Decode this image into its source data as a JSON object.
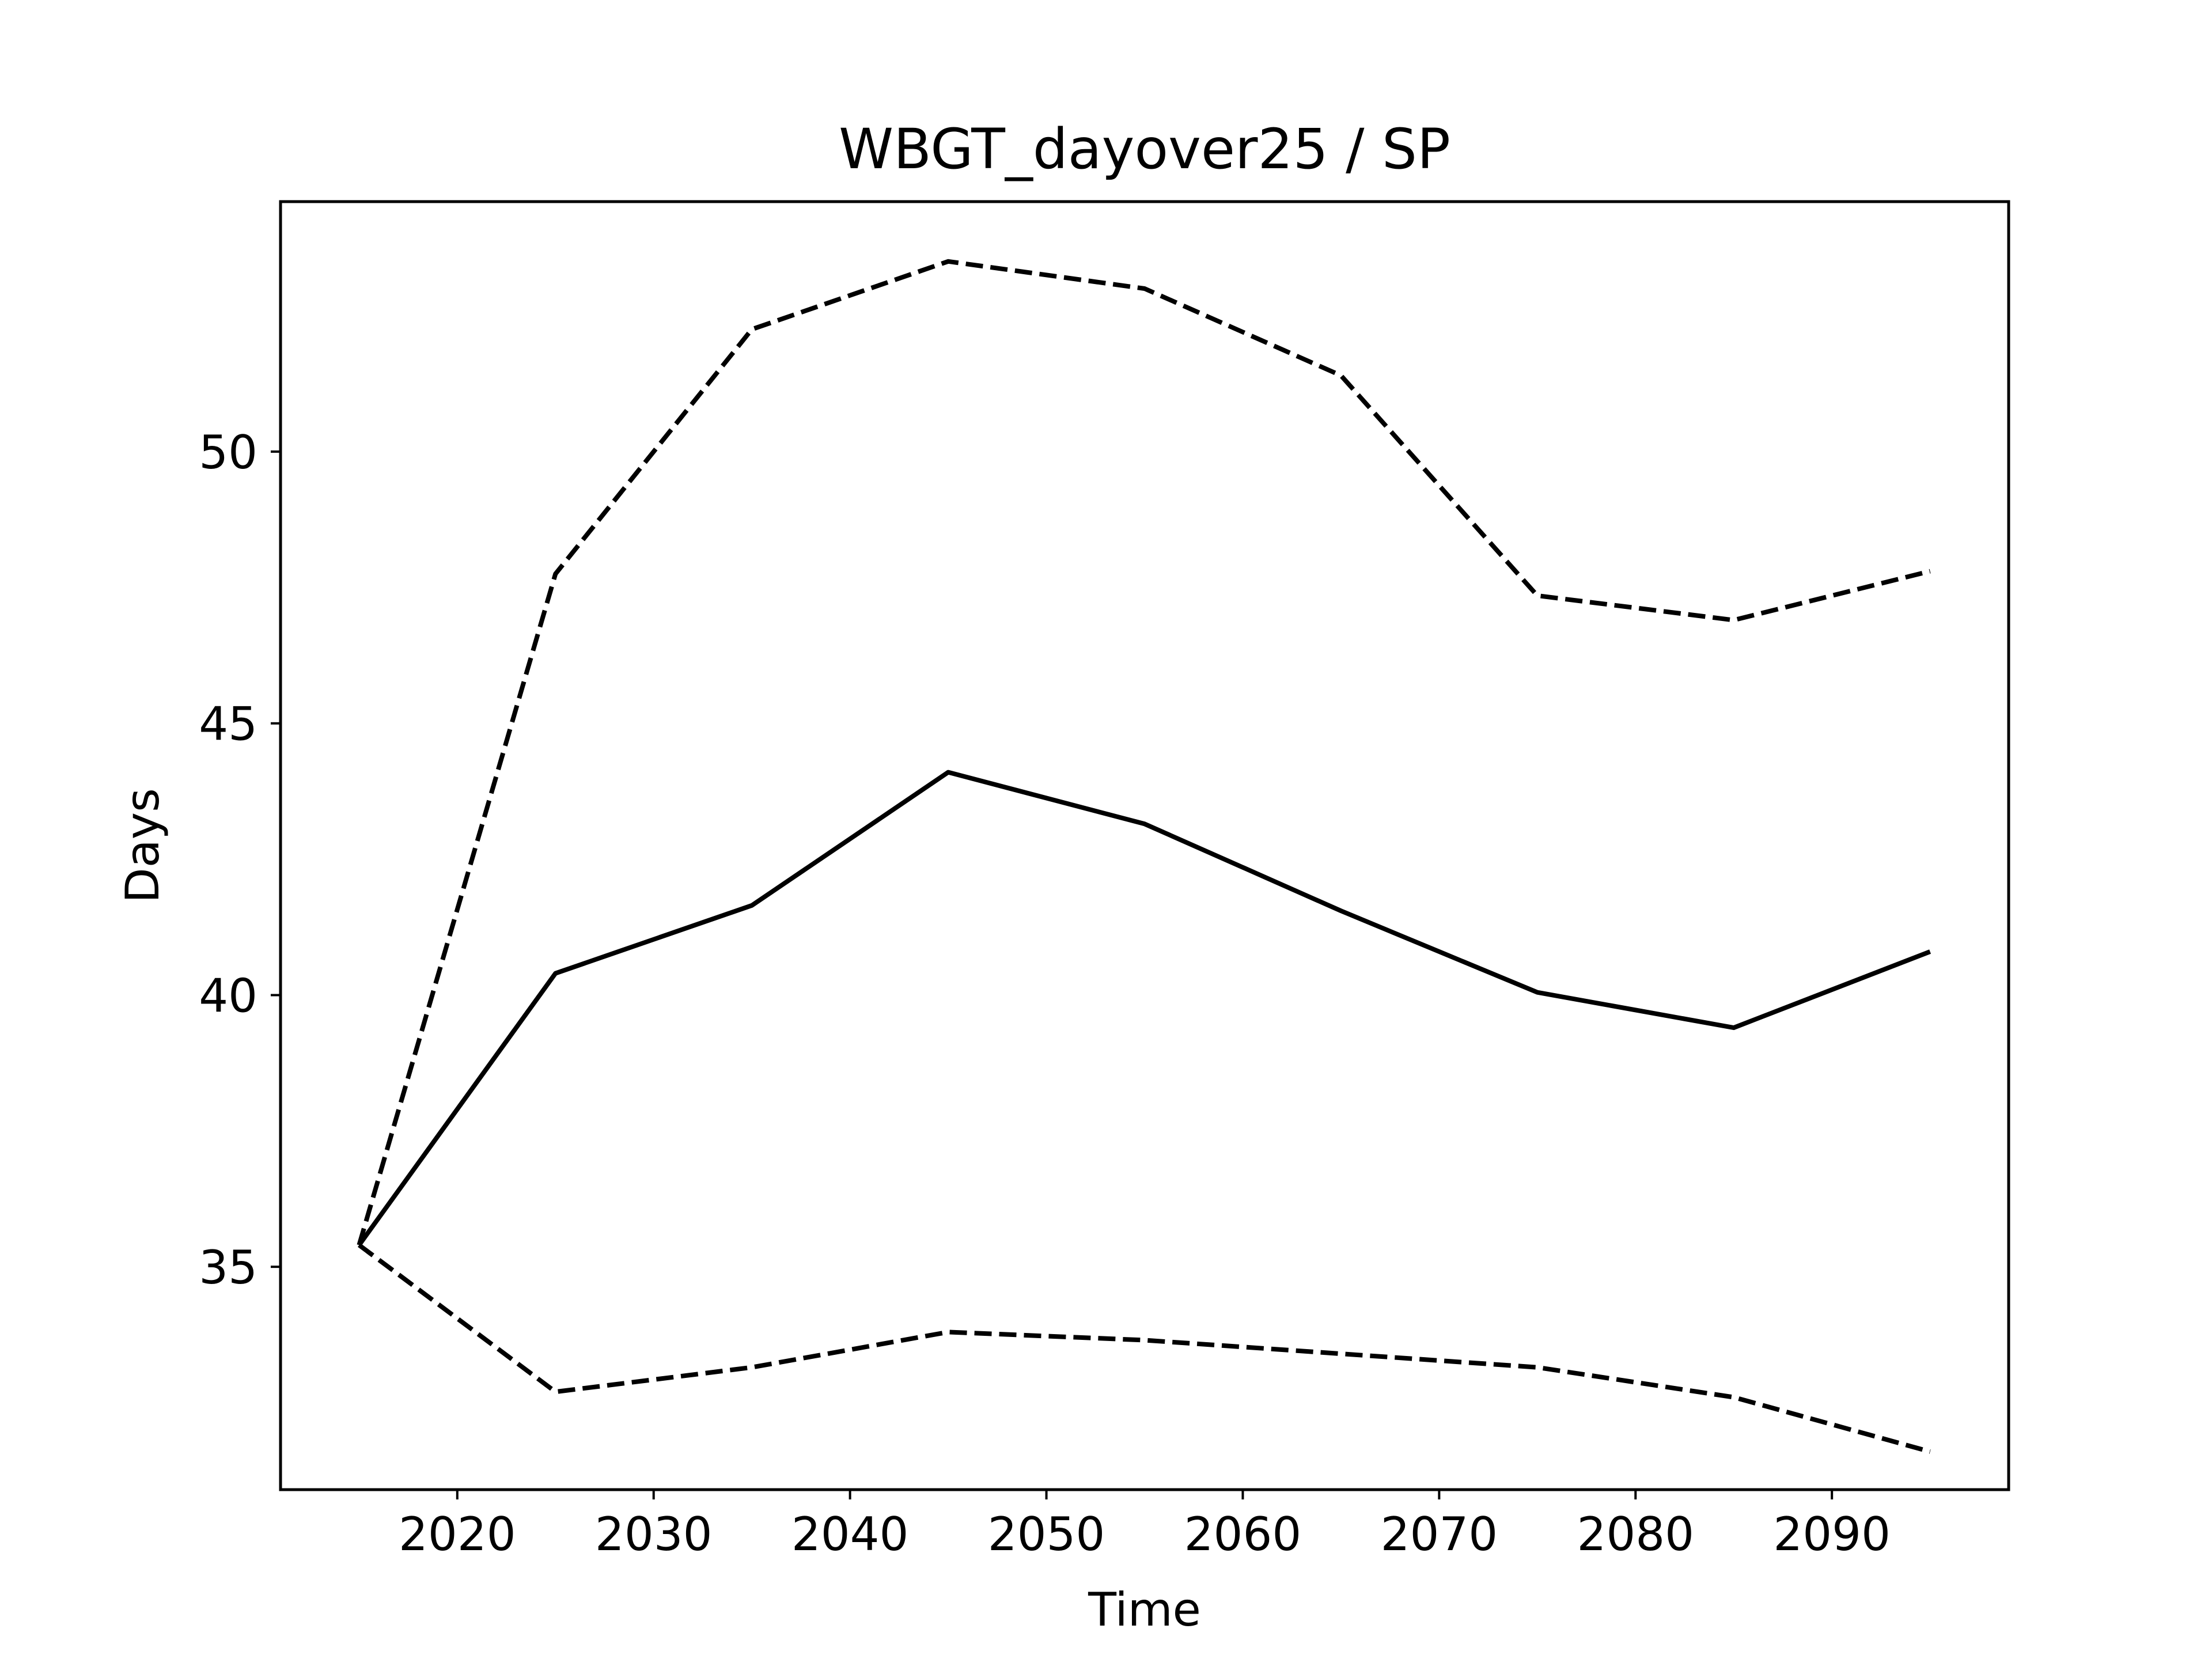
{
  "chart_data": {
    "type": "line",
    "title": "WBGT_dayover25 / SP",
    "xlabel": "Time",
    "ylabel": "Days",
    "x": [
      2015,
      2025,
      2035,
      2045,
      2055,
      2065,
      2075,
      2085,
      2095
    ],
    "series": [
      {
        "values": [
          35.4,
          40.4,
          41.65,
          44.1,
          43.15,
          41.55,
          40.05,
          39.4,
          40.8
        ],
        "style": "solid",
        "color": "#000000"
      },
      {
        "values": [
          35.4,
          47.75,
          52.25,
          53.5,
          53.0,
          51.4,
          47.35,
          46.9,
          47.8
        ],
        "style": "dashed",
        "color": "#000000"
      },
      {
        "values": [
          35.4,
          32.7,
          33.15,
          33.8,
          33.65,
          33.4,
          33.15,
          32.6,
          31.6
        ],
        "style": "dashed",
        "color": "#000000"
      }
    ],
    "xlim": [
      2011,
      2099
    ],
    "ylim": [
      30.9,
      54.6
    ],
    "xticks": [
      2020,
      2030,
      2040,
      2050,
      2060,
      2070,
      2080,
      2090
    ],
    "yticks": [
      35,
      40,
      45,
      50
    ],
    "grid": false,
    "legend": "none"
  }
}
